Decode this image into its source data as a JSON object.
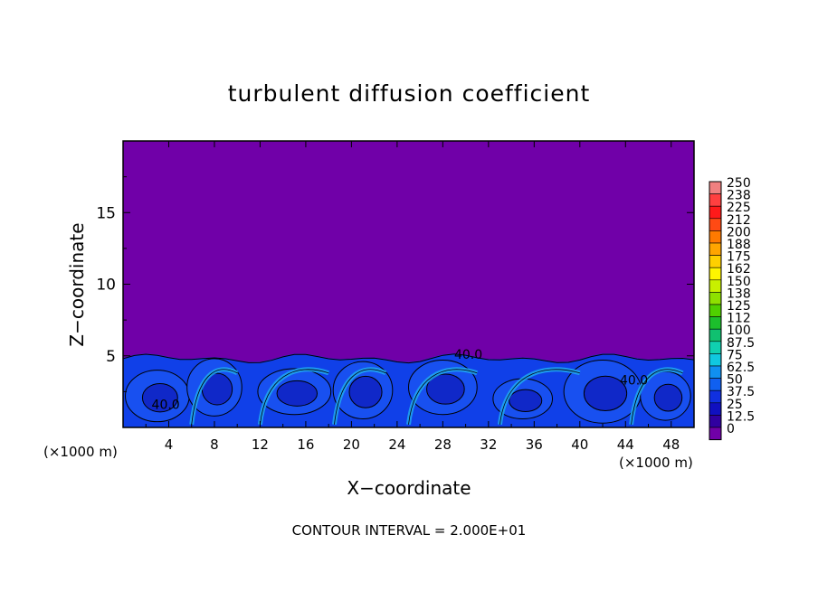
{
  "chart_data": {
    "type": "heatmap",
    "title": "turbulent diffusion coefficient",
    "xlabel": "X−coordinate",
    "ylabel": "Z−coordinate",
    "x_unit": "(×1000 m)",
    "y_unit": "(×1000 m)",
    "footer": "CONTOUR INTERVAL = 2.000E+01",
    "xlim": [
      0,
      50
    ],
    "ylim": [
      0,
      20
    ],
    "x_ticks": [
      "4",
      "8",
      "12",
      "16",
      "20",
      "24",
      "28",
      "32",
      "36",
      "40",
      "44",
      "48"
    ],
    "y_ticks": [
      "5",
      "10",
      "15"
    ],
    "background_level": 0,
    "turbulent_layer_top_km": 5,
    "contour_interval": 20,
    "contour_labels": [
      {
        "text": "40.0",
        "x": 2.5,
        "z": 1.3
      },
      {
        "text": "40.0",
        "x": 29,
        "z": 4.8
      },
      {
        "text": "40.0",
        "x": 43.5,
        "z": 3.0
      }
    ],
    "colorbar": {
      "labels": [
        "250",
        "238",
        "225",
        "212",
        "200",
        "188",
        "175",
        "162",
        "150",
        "138",
        "125",
        "112",
        "100",
        "87.5",
        "75",
        "62.5",
        "50",
        "37.5",
        "25",
        "12.5",
        "0"
      ],
      "colors": [
        "#f08080",
        "#ff4040",
        "#ff1a1a",
        "#ff4a14",
        "#ff7a00",
        "#ffa500",
        "#ffd000",
        "#fff500",
        "#c8f000",
        "#8ee000",
        "#4fd000",
        "#1cbf2c",
        "#10c070",
        "#10d0b0",
        "#10c8e0",
        "#1090f0",
        "#1060f0",
        "#1030e0",
        "#1010c0",
        "#3000a0",
        "#7000a8"
      ]
    }
  }
}
